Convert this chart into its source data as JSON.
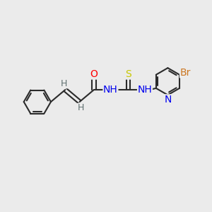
{
  "bg_color": "#ebebeb",
  "bond_color": "#2b2b2b",
  "bond_width": 1.5,
  "atoms": {
    "O": {
      "color": "#ff0000",
      "fontsize": 10
    },
    "S": {
      "color": "#c8c800",
      "fontsize": 10
    },
    "N": {
      "color": "#0000ee",
      "fontsize": 10
    },
    "Br": {
      "color": "#cc7722",
      "fontsize": 10
    },
    "H": {
      "color": "#607070",
      "fontsize": 9
    }
  },
  "figsize": [
    3.0,
    3.0
  ],
  "dpi": 100
}
